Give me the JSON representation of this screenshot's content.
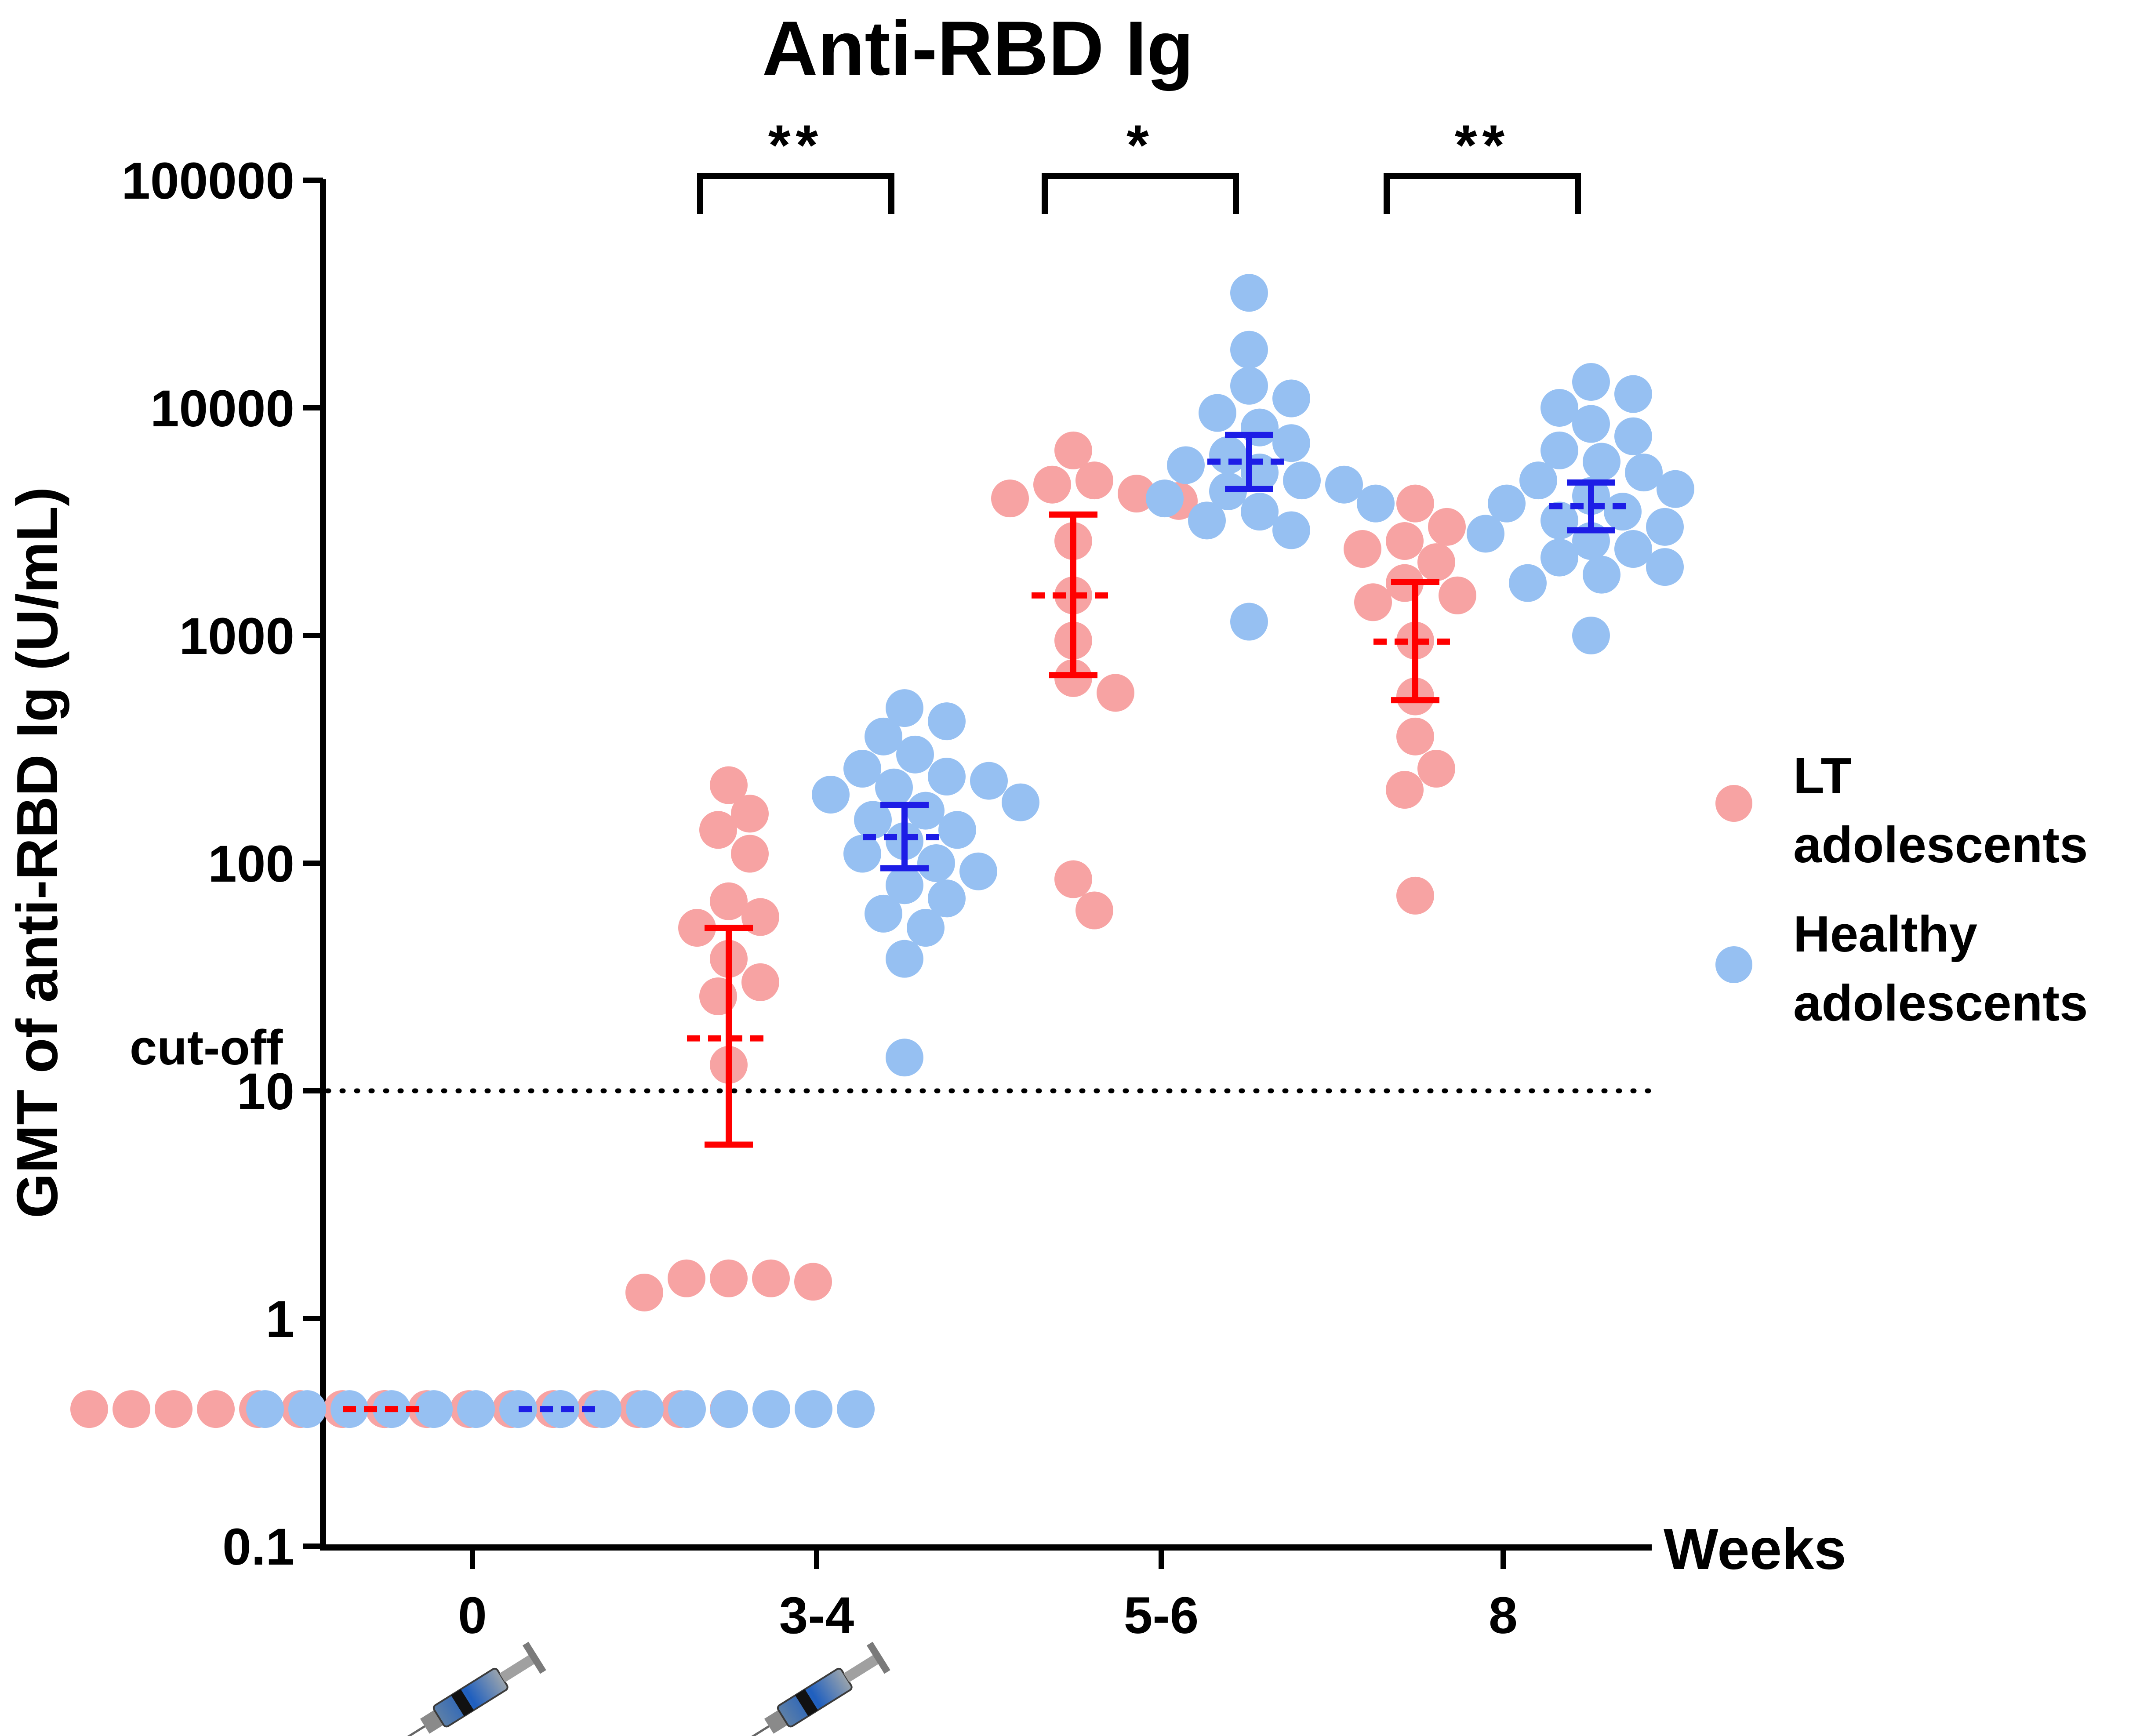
{
  "chart_data": {
    "type": "scatter",
    "title": "Anti-RBD Ig",
    "ylabel": "GMT of anti-RBD Ig (U/mL)",
    "xlabel": "Weeks",
    "yscale": "log",
    "ylim": [
      0.1,
      100000
    ],
    "y_ticks": [
      "0.1",
      "1",
      "10",
      "100",
      "1000",
      "10000",
      "100000"
    ],
    "categories": [
      "0",
      "3-4",
      "5-6",
      "8"
    ],
    "cutoff": {
      "label": "cut-off",
      "value": 10
    },
    "vaccination_weeks": [
      "0",
      "3-4"
    ],
    "significance": [
      {
        "category": "3-4",
        "label": "**"
      },
      {
        "category": "5-6",
        "label": "*"
      },
      {
        "category": "8",
        "label": "**"
      }
    ],
    "colors": {
      "lt_point": "#f7a3a3",
      "lt_line": "#ff0000",
      "healthy_point": "#96c0f2",
      "healthy_line": "#1d1de6"
    },
    "series": [
      {
        "name": "LT adolescents",
        "legend_lines": [
          "LT",
          "adolescents"
        ],
        "groups": [
          {
            "category": "0",
            "gmt": 0.4,
            "ci": null,
            "values": [
              0.4,
              0.4,
              0.4,
              0.4,
              0.4,
              0.4,
              0.4,
              0.4,
              0.4,
              0.4,
              0.4,
              0.4,
              0.4,
              0.4,
              0.4,
              0.4,
              0.4,
              0.4
            ]
          },
          {
            "category": "3-4",
            "gmt": 17,
            "ci": [
              5.8,
              52
            ],
            "values": [
              220,
              165,
              140,
              110,
              68,
              58,
              52,
              38,
              30,
              26,
              13,
              1.5,
              1.5,
              1.5,
              1.45,
              1.3,
              0.4
            ]
          },
          {
            "category": "5-6",
            "gmt": 1500,
            "ci": [
              670,
              3400
            ],
            "values": [
              6500,
              4800,
              4600,
              4200,
              4000,
              3900,
              2600,
              1500,
              950,
              650,
              560,
              85,
              62
            ]
          },
          {
            "category": "8",
            "gmt": 940,
            "ci": [
              520,
              1720
            ],
            "values": [
              3800,
              3000,
              2600,
              2400,
              2100,
              1700,
              1500,
              1400,
              950,
              540,
              360,
              260,
              210,
              72
            ]
          }
        ]
      },
      {
        "name": "Healthy adolescents",
        "legend_lines": [
          "Healthy",
          "adolescents"
        ],
        "groups": [
          {
            "category": "0",
            "gmt": 0.4,
            "ci": null,
            "values": [
              0.4,
              0.4,
              0.4,
              0.4,
              0.4,
              0.4,
              0.4,
              0.4,
              0.4,
              0.4,
              0.4,
              0.4,
              0.4,
              0.4,
              0.4,
              0.4,
              0.4,
              0.4
            ]
          },
          {
            "category": "3-4",
            "gmt": 130,
            "ci": [
              95,
              180
            ],
            "values": [
              480,
              420,
              360,
              300,
              260,
              240,
              230,
              215,
              200,
              185,
              170,
              155,
              140,
              125,
              110,
              100,
              92,
              80,
              70,
              60,
              52,
              38,
              14
            ]
          },
          {
            "category": "5-6",
            "gmt": 5800,
            "ci": [
              4400,
              7600
            ],
            "values": [
              32000,
              18000,
              12500,
              11000,
              9500,
              8200,
              7000,
              6200,
              5600,
              5200,
              4800,
              4600,
              4300,
              4000,
              3800,
              3500,
              3200,
              2900,
              1150
            ]
          },
          {
            "category": "8",
            "gmt": 3700,
            "ci": [
              2900,
              4700
            ],
            "values": [
              13000,
              11500,
              10000,
              8500,
              7500,
              6500,
              5800,
              5200,
              4800,
              4400,
              4100,
              3800,
              3500,
              3200,
              3000,
              2800,
              2600,
              2400,
              2200,
              2000,
              1850,
              1700,
              1000
            ]
          }
        ]
      }
    ]
  }
}
